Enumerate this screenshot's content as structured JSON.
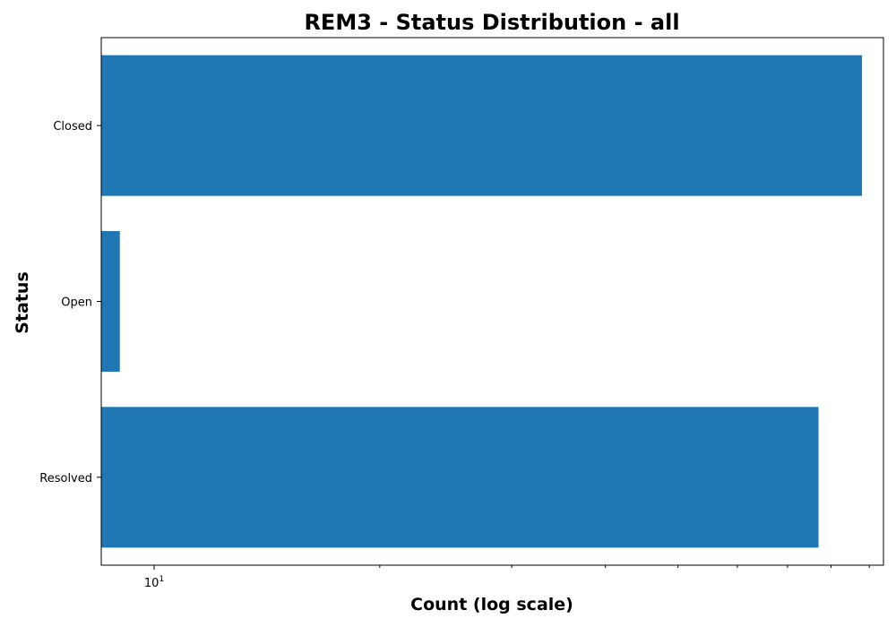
{
  "chart_data": {
    "type": "bar",
    "orientation": "horizontal",
    "title": "REM3 - Status Distribution - all",
    "xlabel": "Count (log scale)",
    "ylabel": "Status",
    "xscale": "log",
    "xlim": [
      8.5,
      94
    ],
    "x_major_ticks": [
      10
    ],
    "x_major_tick_labels": [
      {
        "base": "10",
        "exponent": "1"
      }
    ],
    "x_minor_ticks": [
      20,
      30,
      40,
      50,
      60,
      70,
      80,
      90
    ],
    "categories": [
      "Closed",
      "Open",
      "Resolved"
    ],
    "values": [
      88,
      9,
      77
    ],
    "bar_color": "#1f77b4",
    "grid": false,
    "legend": "none"
  }
}
